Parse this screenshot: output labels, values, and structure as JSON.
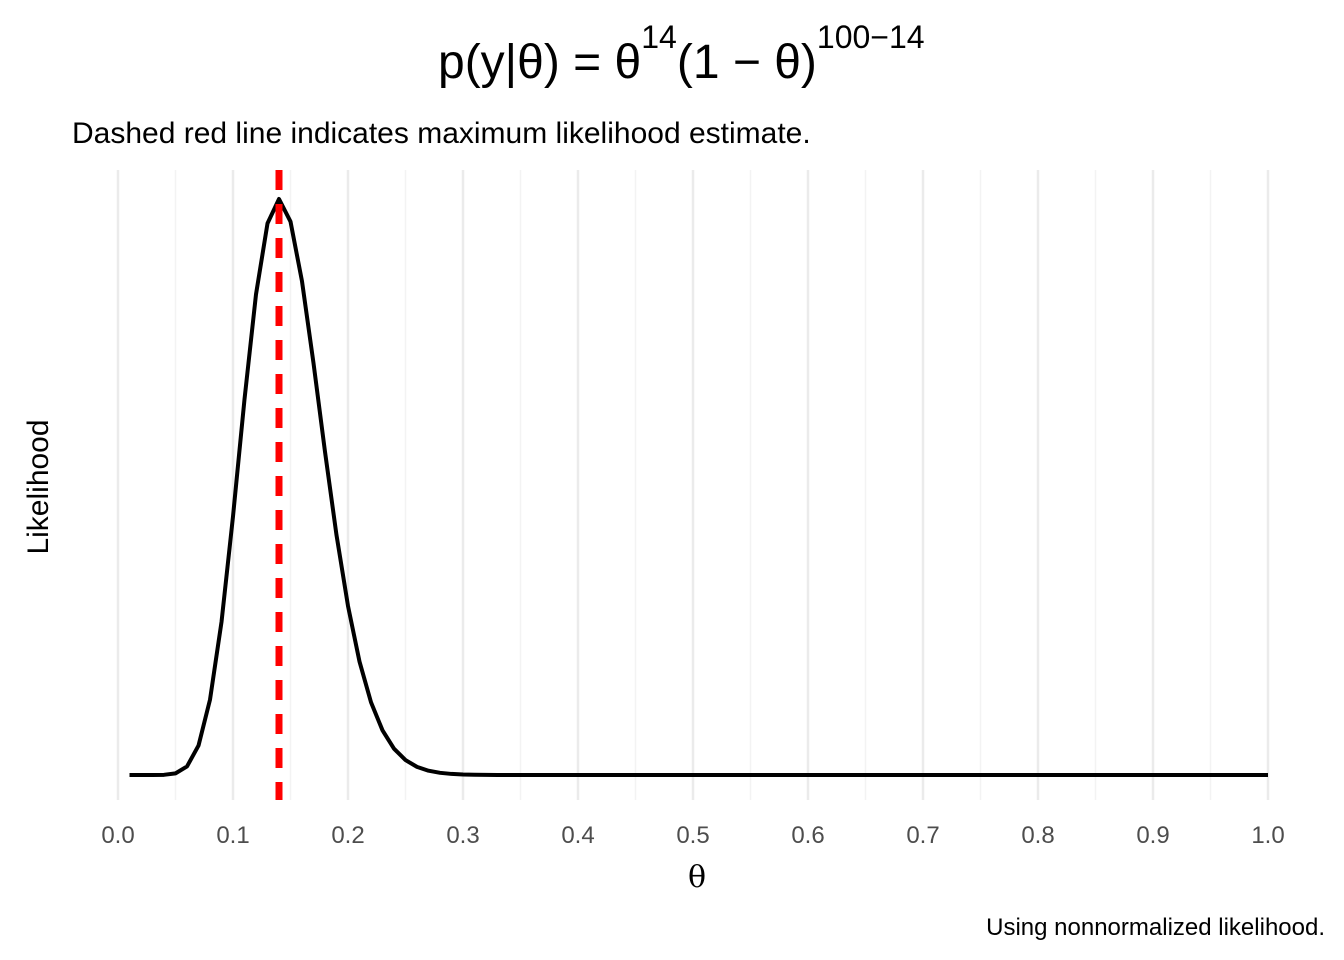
{
  "title": {
    "prefix": "p(y|θ) = θ",
    "exp1": "14",
    "middle": "(1 − θ)",
    "exp2": "100−14"
  },
  "subtitle": "Dashed red line indicates maximum likelihood estimate.",
  "caption": "Using nonnormalized likelihood.",
  "colors": {
    "curve": "#000000",
    "mle_line": "#ff0000",
    "grid_major": "#ebebeb",
    "grid_minor": "#f3f3f3"
  },
  "chart_data": {
    "type": "line",
    "xlabel": "θ",
    "ylabel": "Likelihood",
    "xlim": [
      0.0,
      1.0
    ],
    "x_ticks": [
      "0.0",
      "0.1",
      "0.2",
      "0.3",
      "0.4",
      "0.5",
      "0.6",
      "0.7",
      "0.8",
      "0.9",
      "1.0"
    ],
    "y_ticks_shown": false,
    "grid": "vertical",
    "likelihood": {
      "y": 14,
      "n": 100,
      "theta_start": 0.01,
      "theta_end": 1.0,
      "theta_step": 0.01
    },
    "mle": 0.14
  }
}
